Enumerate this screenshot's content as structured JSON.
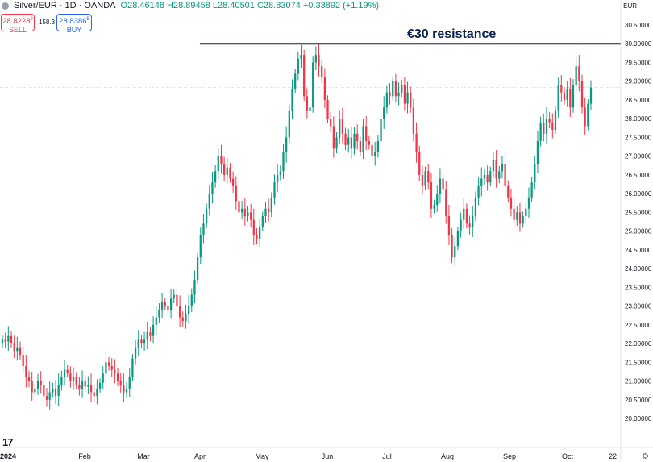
{
  "header": {
    "symbol": "Silver/EUR · 1D · OANDA",
    "open": "O28.46148",
    "high": "H28.89458",
    "low": "L28.40501",
    "close": "C28.83074",
    "change": "+0.33892 (+1.19%)"
  },
  "trade": {
    "sell_price": "28.8228",
    "sell_sup": "2",
    "sell_label": "SELL",
    "spread": "158.3",
    "buy_price": "28.8386",
    "buy_sup": "5",
    "buy_label": "BUY"
  },
  "currency": "EUR",
  "annotation": "€30 resistance",
  "chart_data": {
    "type": "candlestick",
    "title": "",
    "x_ticks": [
      "2024",
      "Feb",
      "Mar",
      "Apr",
      "May",
      "Jun",
      "Jul",
      "Aug",
      "Sep",
      "Oct",
      "22"
    ],
    "y_ticks": [
      "20.00000",
      "20.50000",
      "21.00000",
      "21.50000",
      "22.00000",
      "22.50000",
      "23.00000",
      "23.50000",
      "24.00000",
      "24.50000",
      "25.00000",
      "25.50000",
      "26.00000",
      "26.50000",
      "27.00000",
      "27.50000",
      "28.00000",
      "28.50000",
      "29.00000",
      "29.50000",
      "30.00000",
      "30.50000"
    ],
    "ylim": [
      19.55,
      30.8
    ],
    "resistance_level": 30.0,
    "grid": false,
    "colors": {
      "up": "#089981",
      "down": "#f23645",
      "resistance": "#0b1f4d"
    },
    "closes": [
      22.1,
      22.05,
      22.2,
      22.0,
      21.8,
      21.9,
      21.7,
      21.4,
      21.1,
      21.0,
      20.7,
      20.8,
      21.0,
      20.9,
      20.6,
      20.5,
      20.7,
      20.8,
      20.6,
      20.9,
      21.1,
      21.3,
      21.2,
      21.0,
      21.1,
      20.9,
      20.8,
      21.0,
      20.85,
      20.9,
      20.7,
      20.6,
      20.8,
      20.95,
      21.2,
      21.5,
      21.4,
      21.3,
      21.2,
      21.0,
      20.9,
      20.7,
      20.8,
      21.1,
      21.6,
      21.9,
      22.1,
      22.0,
      22.1,
      22.3,
      22.2,
      22.5,
      22.7,
      22.9,
      23.1,
      23.0,
      22.9,
      23.2,
      23.3,
      23.0,
      22.7,
      22.6,
      22.8,
      23.0,
      23.3,
      23.7,
      24.3,
      24.9,
      25.2,
      25.6,
      26.0,
      26.3,
      26.6,
      27.0,
      26.8,
      26.5,
      26.7,
      26.4,
      26.2,
      25.8,
      25.5,
      25.6,
      25.4,
      25.5,
      25.3,
      24.9,
      24.8,
      25.1,
      25.4,
      25.6,
      25.5,
      25.9,
      26.3,
      26.5,
      26.6,
      27.1,
      27.5,
      28.2,
      28.8,
      29.2,
      29.6,
      29.7,
      28.6,
      28.2,
      28.3,
      29.5,
      29.7,
      29.4,
      29.1,
      28.5,
      28.0,
      27.8,
      27.2,
      27.5,
      28.0,
      27.6,
      27.3,
      27.5,
      27.2,
      27.6,
      27.4,
      27.1,
      27.8,
      27.4,
      27.3,
      27.0,
      27.1,
      27.4,
      28.0,
      28.3,
      28.7,
      28.6,
      29.0,
      28.6,
      28.7,
      28.9,
      28.4,
      28.7,
      28.3,
      27.6,
      27.1,
      26.5,
      26.2,
      26.6,
      26.3,
      25.6,
      25.7,
      26.0,
      26.4,
      26.1,
      25.4,
      24.9,
      24.3,
      24.6,
      25.0,
      25.3,
      25.6,
      25.2,
      25.1,
      25.4,
      25.9,
      26.2,
      26.4,
      26.5,
      26.3,
      26.6,
      26.9,
      26.4,
      26.6,
      26.8,
      26.2,
      25.9,
      25.6,
      25.3,
      25.5,
      25.2,
      25.4,
      25.6,
      25.9,
      26.3,
      26.8,
      27.4,
      27.9,
      27.6,
      28.0,
      27.9,
      27.7,
      28.2,
      28.9,
      28.7,
      28.5,
      28.8,
      28.3,
      28.9,
      29.4,
      29.0,
      28.3,
      27.8,
      28.4,
      28.83
    ]
  }
}
